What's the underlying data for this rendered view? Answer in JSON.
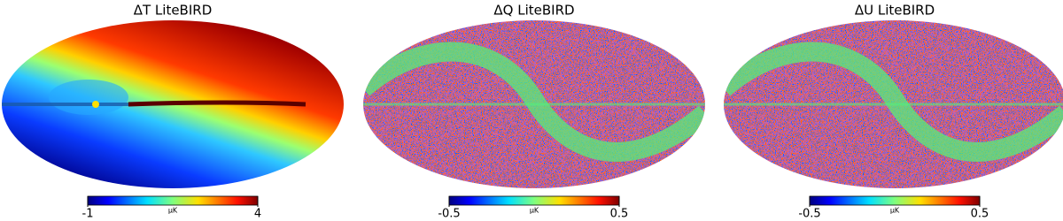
{
  "panels": [
    {
      "title": "ΔT LiteBIRD",
      "colorbar": {
        "min": -1,
        "max": 4,
        "unit": "μK",
        "colormap": "jet"
      },
      "style": "dipole"
    },
    {
      "title": "ΔQ LiteBIRD",
      "colorbar": {
        "min": -0.5,
        "max": 0.5,
        "unit": "μK",
        "colormap": "jet"
      },
      "style": "noise"
    },
    {
      "title": "ΔU LiteBIRD",
      "colorbar": {
        "min": -0.5,
        "max": 0.5,
        "unit": "μK",
        "colormap": "jet"
      },
      "style": "noise"
    }
  ]
}
